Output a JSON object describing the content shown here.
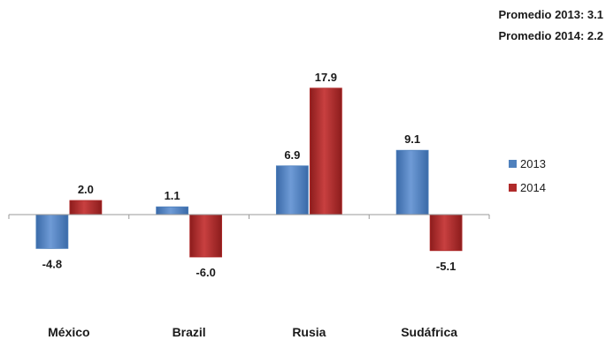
{
  "averages": {
    "line1": "Promedio 2013: 3.1",
    "line2": "Promedio 2014: 2.2"
  },
  "colors": {
    "s2013": "#4f81bd",
    "s2014": "#b02a2a"
  },
  "chart_data": {
    "type": "bar",
    "categories": [
      "México",
      "Brazil",
      "Rusia",
      "Sudáfrica"
    ],
    "series": [
      {
        "name": "2013",
        "values": [
          -4.8,
          1.1,
          6.9,
          9.1
        ],
        "labels": [
          "-4.8",
          "1.1",
          "6.9",
          "9.1"
        ]
      },
      {
        "name": "2014",
        "values": [
          2.0,
          -6.0,
          17.9,
          -5.1
        ],
        "labels": [
          "2.0",
          "-6.0",
          "17.9",
          "-5.1"
        ]
      }
    ],
    "ylim": [
      -6.5,
      20
    ],
    "grid": false,
    "legend": "right"
  }
}
